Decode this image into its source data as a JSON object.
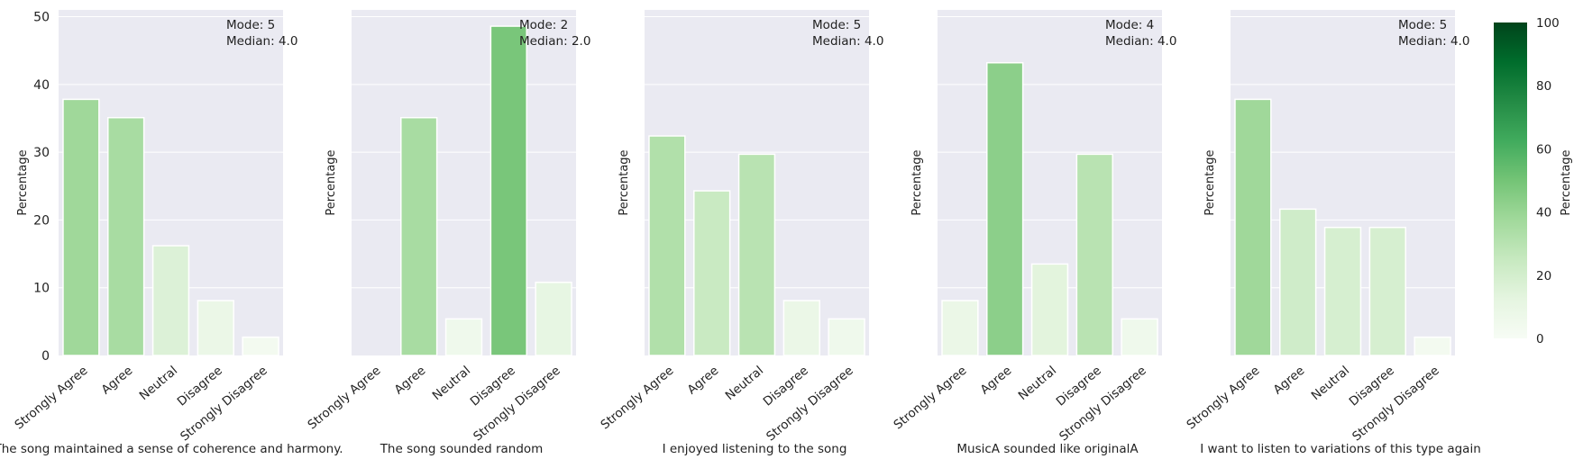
{
  "colorbar": {
    "label": "Percentage",
    "ticks": [
      "0",
      "20",
      "40",
      "60",
      "80",
      "100"
    ],
    "range": [
      0,
      100
    ],
    "colors": [
      "#f7fcf5",
      "#e5f5e0",
      "#c7e9c0",
      "#a1d99b",
      "#74c476",
      "#41ab5d",
      "#238b45",
      "#006d2c",
      "#00441b"
    ]
  },
  "chart_data": [
    {
      "type": "bar",
      "title": "",
      "xlabel": "The song maintained a sense of coherence and harmony.",
      "ylabel": "Percentage",
      "ylim": [
        0,
        51
      ],
      "yticks": [
        "0",
        "10",
        "20",
        "30",
        "40",
        "50"
      ],
      "categories": [
        "Strongly Agree",
        "Agree",
        "Neutral",
        "Disagree",
        "Strongly Disagree"
      ],
      "values": [
        37.8,
        35.1,
        16.2,
        8.1,
        2.7
      ],
      "annotation": [
        "Mode: 5",
        "Median: 4.0"
      ],
      "grid": true
    },
    {
      "type": "bar",
      "title": "",
      "xlabel": "The song sounded random",
      "ylabel": "Percentage",
      "ylim": [
        0,
        51
      ],
      "categories": [
        "Strongly Agree",
        "Agree",
        "Neutral",
        "Disagree",
        "Strongly Disagree"
      ],
      "values": [
        0,
        35.1,
        5.4,
        48.6,
        10.8
      ],
      "annotation": [
        "Mode: 2",
        "Median: 2.0"
      ],
      "grid": true
    },
    {
      "type": "bar",
      "title": "",
      "xlabel": "I enjoyed listening to the song",
      "ylabel": "Percentage",
      "ylim": [
        0,
        51
      ],
      "categories": [
        "Strongly Agree",
        "Agree",
        "Neutral",
        "Disagree",
        "Strongly Disagree"
      ],
      "values": [
        32.4,
        24.3,
        29.7,
        8.1,
        5.4
      ],
      "annotation": [
        "Mode: 5",
        "Median: 4.0"
      ],
      "grid": true
    },
    {
      "type": "bar",
      "title": "",
      "xlabel": "MusicA sounded like originalA",
      "ylabel": "Percentage",
      "ylim": [
        0,
        51
      ],
      "categories": [
        "Strongly Agree",
        "Agree",
        "Neutral",
        "Disagree",
        "Strongly Disagree"
      ],
      "values": [
        8.1,
        43.2,
        13.5,
        29.7,
        5.4
      ],
      "annotation": [
        "Mode: 4",
        "Median: 4.0"
      ],
      "grid": true
    },
    {
      "type": "bar",
      "title": "",
      "xlabel": "I want to listen to variations of this type again",
      "ylabel": "Percentage",
      "ylim": [
        0,
        51
      ],
      "categories": [
        "Strongly Agree",
        "Agree",
        "Neutral",
        "Disagree",
        "Strongly Disagree"
      ],
      "values": [
        37.8,
        21.6,
        18.9,
        18.9,
        2.7
      ],
      "annotation": [
        "Mode: 5",
        "Median: 4.0"
      ],
      "grid": true
    }
  ]
}
